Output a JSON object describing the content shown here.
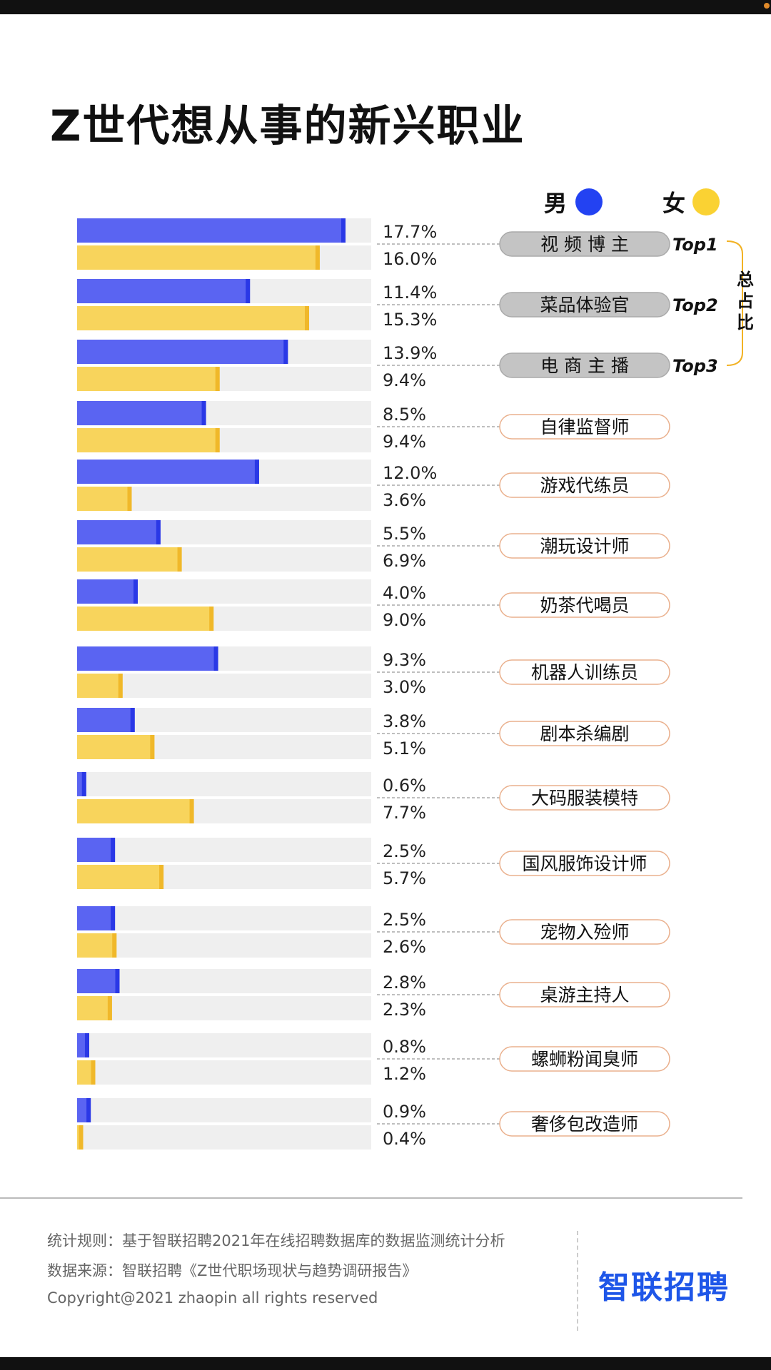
{
  "page": {
    "title": "Z世代想从事的新兴职业"
  },
  "legend": {
    "male": "男",
    "female": "女"
  },
  "colors": {
    "male_bar": "#5a64f2",
    "male_cap": "#2a38e6",
    "male_dot": "#2342f2",
    "female_bar": "#f8d45c",
    "female_cap": "#f0b82a",
    "female_dot": "#fad233",
    "track": "#efefef",
    "top_tag_fill": "#c4c4c4",
    "tag_border": "#eab08d",
    "bracket": "#f2b224"
  },
  "chart_data": {
    "type": "bar",
    "orientation": "horizontal",
    "unit": "%",
    "categories": [
      "视 频 博 主",
      "菜品体验官",
      "电 商 主 播",
      "自律监督师",
      "游戏代练员",
      "潮玩设计师",
      "奶茶代喝员",
      "机器人训练员",
      "剧本杀编剧",
      "大码服装模特",
      "国风服饰设计师",
      "宠物入殓师",
      "桌游主持人",
      "螺蛳粉闻臭师",
      "奢侈包改造师"
    ],
    "series": [
      {
        "name": "男",
        "values": [
          17.7,
          11.4,
          13.9,
          8.5,
          12.0,
          5.5,
          4.0,
          9.3,
          3.8,
          0.6,
          2.5,
          2.5,
          2.8,
          0.8,
          0.9
        ]
      },
      {
        "name": "女",
        "values": [
          16.0,
          15.3,
          9.4,
          9.4,
          3.6,
          6.9,
          9.0,
          3.0,
          5.1,
          7.7,
          5.7,
          2.6,
          2.3,
          1.2,
          0.4
        ]
      }
    ],
    "value_labels": [
      [
        "17.7%",
        "16.0%"
      ],
      [
        "11.4%",
        "15.3%"
      ],
      [
        "13.9%",
        "9.4%"
      ],
      [
        "8.5%",
        "9.4%"
      ],
      [
        "12.0%",
        "3.6%"
      ],
      [
        "5.5%",
        "6.9%"
      ],
      [
        "4.0%",
        "9.0%"
      ],
      [
        "9.3%",
        "3.0%"
      ],
      [
        "3.8%",
        "5.1%"
      ],
      [
        "0.6%",
        "7.7%"
      ],
      [
        "2.5%",
        "5.7%"
      ],
      [
        "2.5%",
        "2.6%"
      ],
      [
        "2.8%",
        "2.3%"
      ],
      [
        "0.8%",
        "1.2%"
      ],
      [
        "0.9%",
        "0.4%"
      ]
    ],
    "xlim": [
      0,
      20
    ],
    "top_labels": [
      "Top1",
      "Top2",
      "Top3"
    ],
    "top_bracket_label": "总占比",
    "grid": false,
    "legend_position": "top-right"
  },
  "footer": {
    "rule": "统计规则：基于智联招聘2021年在线招聘数据库的数据监测统计分析",
    "source": "数据来源：智联招聘《Z世代职场现状与趋势调研报告》",
    "copyright": "Copyright@2021 zhaopin all rights reserved",
    "brand": "智联招聘"
  }
}
